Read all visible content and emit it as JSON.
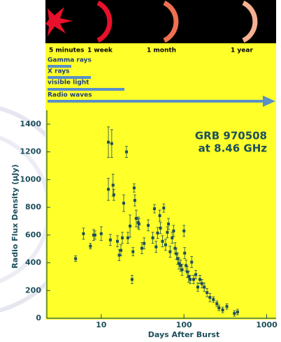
{
  "timeline": {
    "marks": [
      "5 minutes",
      "1 week",
      "1 month",
      "1 year"
    ],
    "bands": [
      "Gamma rays",
      "X rays",
      "visible light",
      "Radio waves"
    ]
  },
  "chart_data": {
    "type": "scatter",
    "annotation": [
      "GRB 970508",
      "at 8.46 GHz"
    ],
    "x_label": "Days After Burst",
    "y_label": "Radio Flux Density (μJy)",
    "log_x": true,
    "color": "#1d4f5c",
    "xlim": [
      2.2,
      1300
    ],
    "xticks": [
      10,
      100,
      1000
    ],
    "ylim": [
      0,
      1500
    ],
    "yticks": [
      0,
      200,
      400,
      600,
      800,
      1000,
      1200,
      1400
    ],
    "x": [
      4.9,
      6.1,
      7.4,
      8.1,
      8.4,
      10,
      12.2,
      12.2,
      12.9,
      13.4,
      13.9,
      14.2,
      15.7,
      16.5,
      17.3,
      18,
      18.7,
      20.2,
      21,
      22.3,
      23.6,
      24.2,
      25,
      25.5,
      26.5,
      28,
      28.6,
      31,
      33,
      37,
      42,
      44,
      46,
      48,
      51,
      52,
      55,
      57,
      60,
      63,
      65,
      68,
      72,
      75,
      78,
      81,
      84,
      87,
      91,
      95,
      100,
      102,
      106,
      110,
      114,
      119,
      124,
      131,
      139,
      147,
      156,
      165,
      176,
      190,
      206,
      227,
      250,
      265,
      294,
      330,
      407,
      445
    ],
    "values": [
      430,
      610,
      520,
      600,
      600,
      610,
      1270,
      930,
      565,
      1260,
      960,
      890,
      555,
      455,
      490,
      580,
      830,
      1200,
      580,
      665,
      280,
      480,
      940,
      850,
      720,
      690,
      680,
      505,
      540,
      670,
      580,
      790,
      515,
      615,
      740,
      650,
      555,
      795,
      530,
      620,
      680,
      480,
      580,
      630,
      505,
      465,
      430,
      395,
      380,
      350,
      630,
      470,
      380,
      335,
      300,
      280,
      405,
      280,
      315,
      225,
      280,
      250,
      225,
      185,
      150,
      135,
      105,
      75,
      60,
      85,
      35,
      45
    ],
    "errors": [
      20,
      40,
      20,
      40,
      30,
      50,
      110,
      80,
      40,
      100,
      80,
      40,
      40,
      40,
      40,
      40,
      60,
      40,
      40,
      80,
      30,
      30,
      30,
      40,
      60,
      40,
      40,
      40,
      40,
      40,
      40,
      30,
      40,
      40,
      40,
      40,
      40,
      30,
      40,
      40,
      40,
      40,
      40,
      40,
      40,
      40,
      40,
      40,
      40,
      40,
      40,
      40,
      40,
      40,
      40,
      30,
      40,
      30,
      30,
      30,
      30,
      30,
      30,
      30,
      30,
      20,
      20,
      20,
      20,
      20,
      20,
      20
    ]
  }
}
